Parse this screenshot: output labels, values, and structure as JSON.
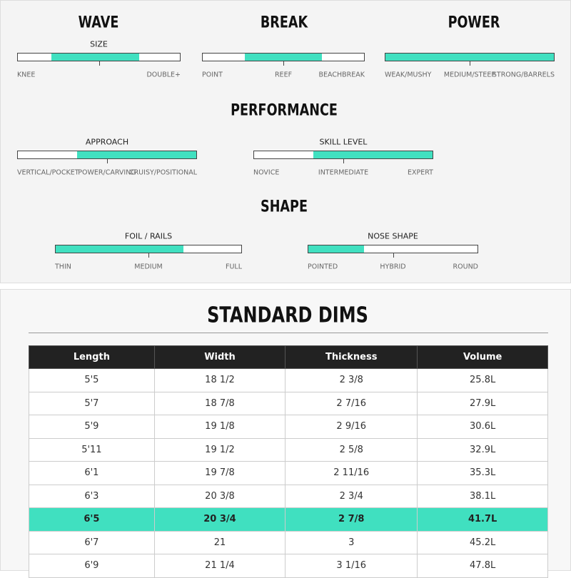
{
  "sections": [
    {
      "title": "WAVE",
      "sliders": [
        {
          "label": "SIZE",
          "range": [
            20.5,
            74.7
          ],
          "stops": [
            "KNEE",
            "DOUBLE+"
          ]
        }
      ]
    },
    {
      "title": "BREAK",
      "sliders": [
        {
          "range": [
            26,
            74
          ],
          "stops": [
            "POINT",
            "REEF",
            "BEACHBREAK"
          ]
        }
      ]
    },
    {
      "title": "POWER",
      "sliders": [
        {
          "range": [
            0,
            100
          ],
          "stops": [
            "WEAK/MUSHY",
            "MEDIUM/STEEP",
            "STRONG/BARRELS"
          ]
        }
      ]
    },
    {
      "title": "PERFORMANCE",
      "sliders": [
        {
          "label": "APPROACH",
          "range": [
            33,
            100
          ],
          "stops": [
            "VERTICAL/POCKET",
            "POWER/CARVING",
            "CRUISY/POSITIONAL"
          ]
        },
        {
          "label": "SKILL LEVEL",
          "range": [
            33,
            100
          ],
          "stops": [
            "NOVICE",
            "INTERMEDIATE",
            "EXPERT"
          ]
        }
      ]
    },
    {
      "title": "SHAPE",
      "sliders": [
        {
          "label": "FOIL / RAILS",
          "range": [
            0,
            69
          ],
          "stops": [
            "THIN",
            "MEDIUM",
            "FULL"
          ]
        },
        {
          "label": "NOSE SHAPE",
          "range": [
            0,
            33
          ],
          "stops": [
            "POINTED",
            "HYBRID",
            "ROUND"
          ]
        }
      ]
    }
  ],
  "dims": {
    "title": "STANDARD DIMS",
    "highlight_row": 6,
    "columns": [
      "Length",
      "Width",
      "Thickness",
      "Volume"
    ],
    "rows": [
      [
        "5'5",
        "18 1/2",
        "2 3/8",
        "25.8L"
      ],
      [
        "5'7",
        "18 7/8",
        "2 7/16",
        "27.9L"
      ],
      [
        "5'9",
        "19 1/8",
        "2 9/16",
        "30.6L"
      ],
      [
        "5'11",
        "19 1/2",
        "2 5/8",
        "32.9L"
      ],
      [
        "6'1",
        "19 7/8",
        "2 11/16",
        "35.3L"
      ],
      [
        "6'3",
        "20 3/8",
        "2 3/4",
        "38.1L"
      ],
      [
        "6'5",
        "20 3/4",
        "2 7/8",
        "41.7L"
      ],
      [
        "6'7",
        "21",
        "3",
        "45.2L"
      ],
      [
        "6'9",
        "21 1/4",
        "3 1/16",
        "47.8L"
      ]
    ]
  }
}
